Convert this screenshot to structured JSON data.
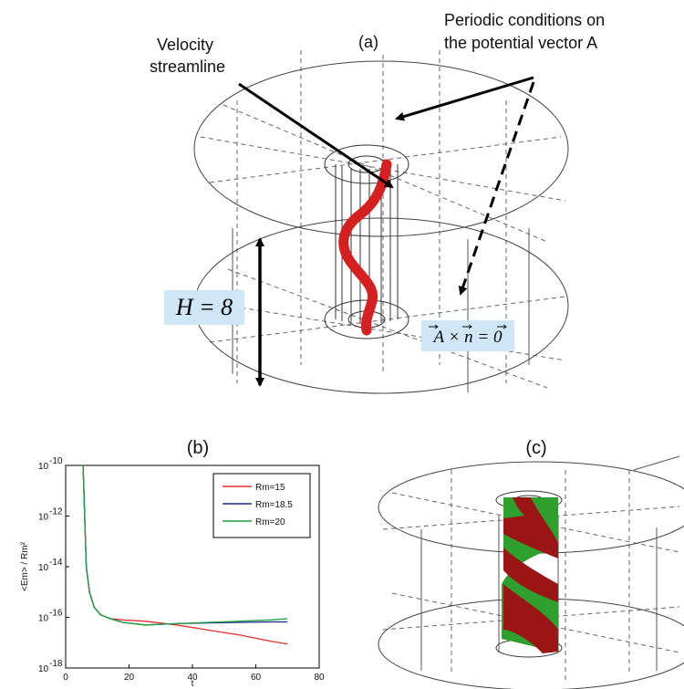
{
  "panel_a": {
    "label": "(a)",
    "velocity_label_line1": "Velocity",
    "velocity_label_line2": "streamline",
    "periodic_line1": "Periodic conditions on",
    "periodic_line2": "the potential vector A",
    "height_eq": "H = 8",
    "bc_eq": "A × n = 0",
    "colors": {
      "streamline": "#d42020",
      "box_bg": "#cfe6f7",
      "wire": "#555555"
    }
  },
  "panel_b": {
    "label": "(b)"
  },
  "panel_c": {
    "label": "(c)",
    "colors": {
      "red": "#9a1616",
      "green": "#2ea02e"
    }
  },
  "chart_data": {
    "type": "line",
    "xlabel": "t",
    "ylabel": "<Em> / Rm²",
    "xlim": [
      0,
      80
    ],
    "ylim_log10": [
      -18,
      -10
    ],
    "log_y": true,
    "x_ticks": [
      "0",
      "20",
      "40",
      "60",
      "80"
    ],
    "y_ticks": [
      "10",
      "10",
      "10",
      "10",
      "10"
    ],
    "y_tick_exps": [
      "-18",
      "-16",
      "-14",
      "-12",
      "-10"
    ],
    "legend_position": "top-right",
    "series": [
      {
        "name": "Rm=15",
        "color": "#e03030",
        "x": [
          5.5,
          6.5,
          7.5,
          9,
          11,
          14,
          18,
          25,
          35,
          45,
          55,
          65,
          70
        ],
        "log10y": [
          -10.0,
          -14.0,
          -15.0,
          -15.6,
          -15.9,
          -16.05,
          -16.1,
          -16.15,
          -16.3,
          -16.5,
          -16.7,
          -16.95,
          -17.05
        ]
      },
      {
        "name": "Rm=18.5",
        "color": "#1a2a8a",
        "x": [
          5.5,
          6.5,
          7.5,
          9,
          11,
          14,
          18,
          25,
          35,
          45,
          55,
          65,
          70
        ],
        "log10y": [
          -10.0,
          -14.0,
          -15.0,
          -15.6,
          -15.9,
          -16.05,
          -16.2,
          -16.3,
          -16.25,
          -16.22,
          -16.2,
          -16.18,
          -16.18
        ]
      },
      {
        "name": "Rm=20",
        "color": "#20a040",
        "x": [
          5.5,
          6.5,
          7.5,
          9,
          11,
          14,
          18,
          25,
          35,
          45,
          55,
          65,
          70
        ],
        "log10y": [
          -10.0,
          -14.0,
          -15.0,
          -15.6,
          -15.9,
          -16.05,
          -16.2,
          -16.3,
          -16.25,
          -16.2,
          -16.15,
          -16.1,
          -16.05
        ]
      }
    ]
  }
}
